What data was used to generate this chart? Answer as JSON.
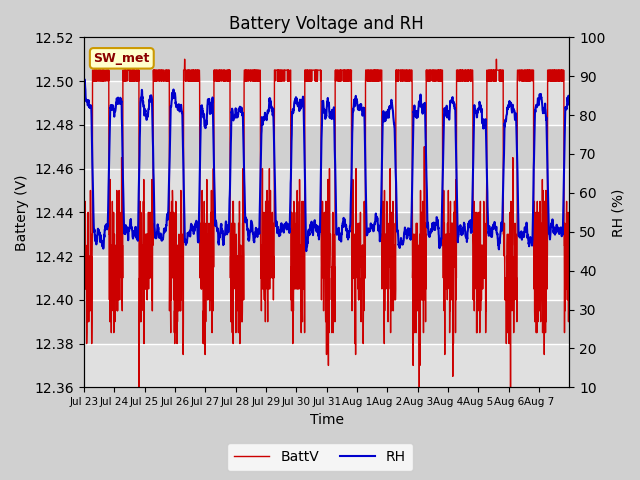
{
  "title": "Battery Voltage and RH",
  "xlabel": "Time",
  "ylabel_left": "Battery (V)",
  "ylabel_right": "RH (%)",
  "ylim_left": [
    12.36,
    12.52
  ],
  "ylim_right": [
    10,
    100
  ],
  "yticks_left": [
    12.36,
    12.38,
    12.4,
    12.42,
    12.44,
    12.46,
    12.48,
    12.5,
    12.52
  ],
  "yticks_right": [
    10,
    20,
    30,
    40,
    50,
    60,
    70,
    80,
    90,
    100
  ],
  "x_tick_labels": [
    "Jul 23",
    "Jul 24",
    "Jul 25",
    "Jul 26",
    "Jul 27",
    "Jul 28",
    "Jul 29",
    "Jul 30",
    "Jul 31",
    "Aug 1",
    "Aug 2",
    "Aug 3",
    "Aug 4",
    "Aug 5",
    "Aug 6",
    "Aug 7"
  ],
  "legend_labels": [
    "BattV",
    "RH"
  ],
  "annotation_text": "SW_met",
  "annotation_box_color": "#ffffcc",
  "annotation_box_edge": "#cc9900",
  "line_color_battv": "#cc0000",
  "line_color_rh": "#0000cc",
  "n_days": 16
}
